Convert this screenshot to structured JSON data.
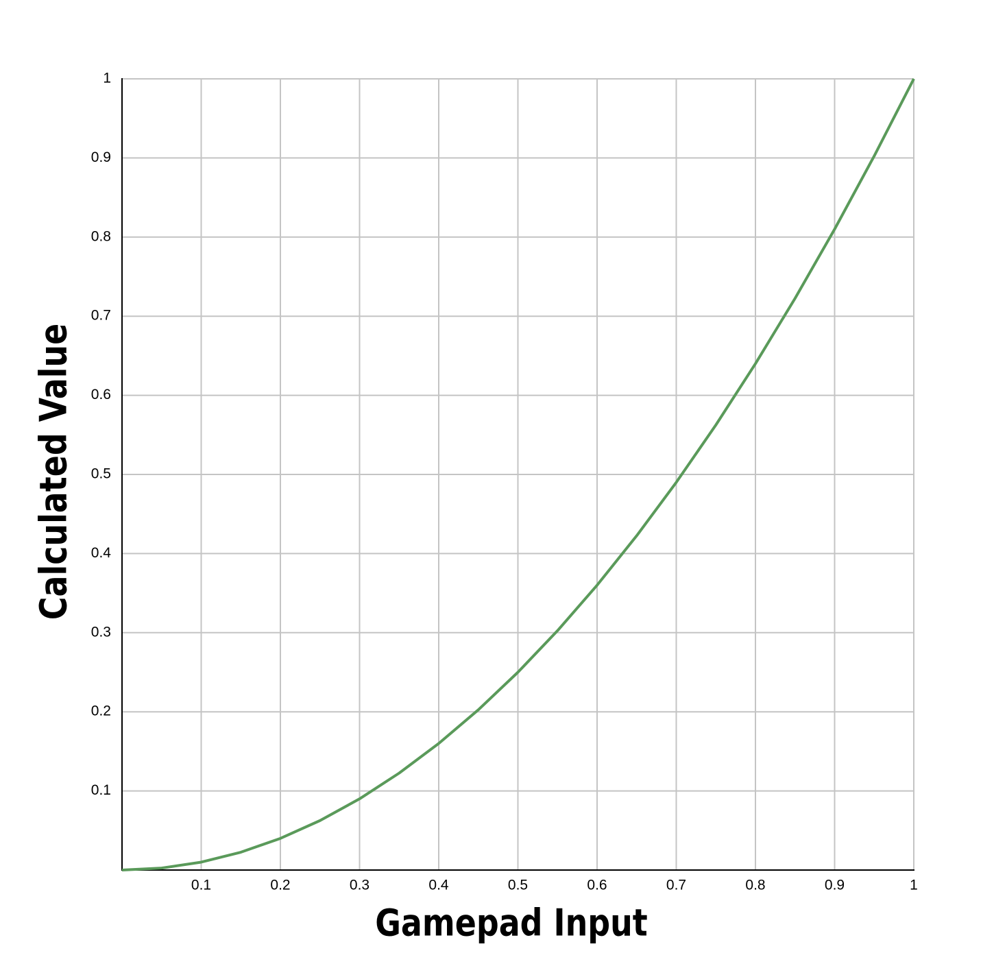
{
  "chart_data": {
    "type": "line",
    "x_label": "Gamepad Input",
    "y_label": "Calculated Value",
    "x": [
      0,
      0.05,
      0.1,
      0.15,
      0.2,
      0.25,
      0.3,
      0.35,
      0.4,
      0.45,
      0.5,
      0.55,
      0.6,
      0.65,
      0.7,
      0.75,
      0.8,
      0.85,
      0.9,
      0.95,
      1
    ],
    "values": [
      0,
      0.0025,
      0.01,
      0.0225,
      0.04,
      0.0625,
      0.09,
      0.1225,
      0.16,
      0.2025,
      0.25,
      0.3025,
      0.36,
      0.4225,
      0.49,
      0.5625,
      0.64,
      0.7225,
      0.81,
      0.9025,
      1
    ],
    "color": "#5a9a5a",
    "xlim": [
      0,
      1
    ],
    "ylim": [
      0,
      1
    ],
    "xticks": [
      0.1,
      0.2,
      0.3,
      0.4,
      0.5,
      0.6,
      0.7,
      0.8,
      0.9,
      1
    ],
    "yticks": [
      0.1,
      0.2,
      0.3,
      0.4,
      0.5,
      0.6,
      0.7,
      0.8,
      0.9,
      1
    ],
    "grid": true
  }
}
